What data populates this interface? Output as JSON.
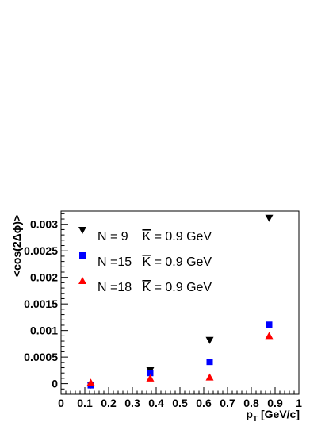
{
  "chart_data": {
    "type": "scatter",
    "xlabel": "p",
    "xlabel_sub": "T",
    "xlabel_unit": "[GeV/c]",
    "ylabel": "<cos(2Δϕ)>",
    "xlim": [
      0,
      1
    ],
    "ylim": [
      -0.0002,
      0.00325
    ],
    "x_ticks": [
      "0",
      "0.1",
      "0.2",
      "0.3",
      "0.4",
      "0.5",
      "0.6",
      "0.7",
      "0.8",
      "0.9",
      "1"
    ],
    "x_tick_values": [
      0,
      0.1,
      0.2,
      0.3,
      0.4,
      0.5,
      0.6,
      0.7,
      0.8,
      0.9,
      1
    ],
    "y_ticks": [
      "0",
      "0.0005",
      "0.001",
      "0.0015",
      "0.002",
      "0.0025",
      "0.003"
    ],
    "y_tick_values": [
      0,
      0.0005,
      0.001,
      0.0015,
      0.002,
      0.0025,
      0.003
    ],
    "grid": false,
    "legend_position": "top-left",
    "series": [
      {
        "name": "N = 9    K = 0.9 GeV",
        "marker": "triangle-down",
        "color": "#000000",
        "x": [
          0.125,
          0.375,
          0.625,
          0.875
        ],
        "y": [
          -2e-05,
          0.00025,
          0.00082,
          0.00312
        ]
      },
      {
        "name": "N =15   K = 0.9 GeV",
        "marker": "square",
        "color": "#0000ff",
        "x": [
          0.125,
          0.375,
          0.625,
          0.875
        ],
        "y": [
          -3e-05,
          0.0002,
          0.00041,
          0.00111
        ]
      },
      {
        "name": "N =18   K = 0.9 GeV",
        "marker": "triangle-up",
        "color": "#ff0000",
        "x": [
          0.125,
          0.375,
          0.625,
          0.875
        ],
        "y": [
          2e-05,
          0.0001,
          0.00012,
          0.0009
        ]
      }
    ]
  }
}
